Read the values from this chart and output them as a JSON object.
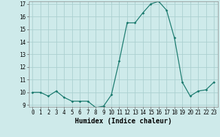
{
  "x": [
    0,
    1,
    2,
    3,
    4,
    5,
    6,
    7,
    8,
    9,
    10,
    11,
    12,
    13,
    14,
    15,
    16,
    17,
    18,
    19,
    20,
    21,
    22,
    23
  ],
  "y": [
    10.0,
    10.0,
    9.7,
    10.1,
    9.6,
    9.3,
    9.3,
    9.3,
    8.8,
    8.9,
    9.8,
    12.5,
    15.5,
    15.5,
    16.3,
    17.0,
    17.2,
    16.5,
    14.3,
    10.8,
    9.7,
    10.1,
    10.2,
    10.8
  ],
  "line_color": "#1a7a6e",
  "marker": "D",
  "marker_size": 2.0,
  "bg_color": "#ceeaea",
  "grid_color": "#aacfcf",
  "xlabel": "Humidex (Indice chaleur)",
  "ylim_min": 9,
  "ylim_max": 17,
  "yticks": [
    9,
    10,
    11,
    12,
    13,
    14,
    15,
    16,
    17
  ],
  "xticks": [
    0,
    1,
    2,
    3,
    4,
    5,
    6,
    7,
    8,
    9,
    10,
    11,
    12,
    13,
    14,
    15,
    16,
    17,
    18,
    19,
    20,
    21,
    22,
    23
  ],
  "tick_fontsize": 5.5,
  "xlabel_fontsize": 7.0,
  "linewidth": 0.9
}
